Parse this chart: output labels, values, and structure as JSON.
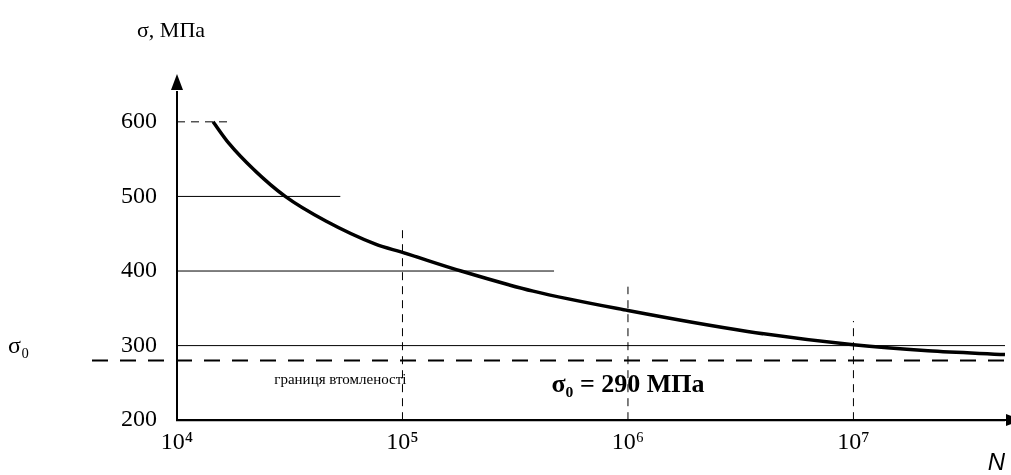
{
  "chart_data": {
    "type": "line",
    "xlabel": "N",
    "ylabel": "σ, МПа",
    "log": "x",
    "xlim": [
      10000,
      47000000
    ],
    "xticks": [
      {
        "value": 10000,
        "label": "10⁴"
      },
      {
        "value": 100000,
        "label": "10⁵"
      },
      {
        "value": 1000000,
        "label": "10⁶"
      },
      {
        "value": 10000000,
        "label": "10⁷"
      }
    ],
    "ylim": [
      200,
      640
    ],
    "yticks": [
      200,
      300,
      400,
      500,
      600
    ],
    "grid": false,
    "legend": false,
    "marker": "none",
    "series": [
      {
        "color": "#000000",
        "x": [
          14450,
          17000,
          21900,
          30200,
          45700,
          75900,
          100000,
          182000,
          380000,
          1000000,
          3390000,
          10000000,
          21400000,
          47000000
        ],
        "values": [
          600,
          571,
          536,
          500,
          467,
          436,
          425,
          400,
          373,
          347,
          319,
          301,
          293,
          288
        ]
      },
      {
        "color": "#000000",
        "line_style": "dashed",
        "x": [
          10000,
          17000
        ],
        "values": [
          600,
          600
        ]
      },
      {
        "color": "#000000",
        "line_style": "solid",
        "x": [
          10000,
          53000
        ],
        "values": [
          500,
          500
        ]
      },
      {
        "color": "#000000",
        "line_style": "solid",
        "x": [
          10000,
          470000
        ],
        "values": [
          400,
          400
        ]
      },
      {
        "color": "#000000",
        "line_style": "solid",
        "x": [
          10000,
          47000000
        ],
        "values": [
          300,
          300
        ]
      },
      {
        "color": "#000000",
        "line_style": "dashed",
        "x": [
          100000,
          100000
        ],
        "values": [
          200,
          457
        ]
      },
      {
        "color": "#000000",
        "line_style": "dashed",
        "x": [
          1000000,
          1000000
        ],
        "values": [
          200,
          379
        ]
      },
      {
        "color": "#000000",
        "line_style": "dashed",
        "x": [
          10000000,
          10000000
        ],
        "values": [
          200,
          333
        ]
      }
    ],
    "ref_lines": [
      {
        "axis": "y",
        "value": 280,
        "label": "σ₀",
        "line_style": "dashed",
        "color": "#000000"
      }
    ],
    "annotations": [
      {
        "text": "границя втомленості",
        "x": 27000,
        "y": 280
      },
      {
        "text": "σ₀ = 290 МПа",
        "x": 1000000,
        "y": 280
      }
    ]
  }
}
